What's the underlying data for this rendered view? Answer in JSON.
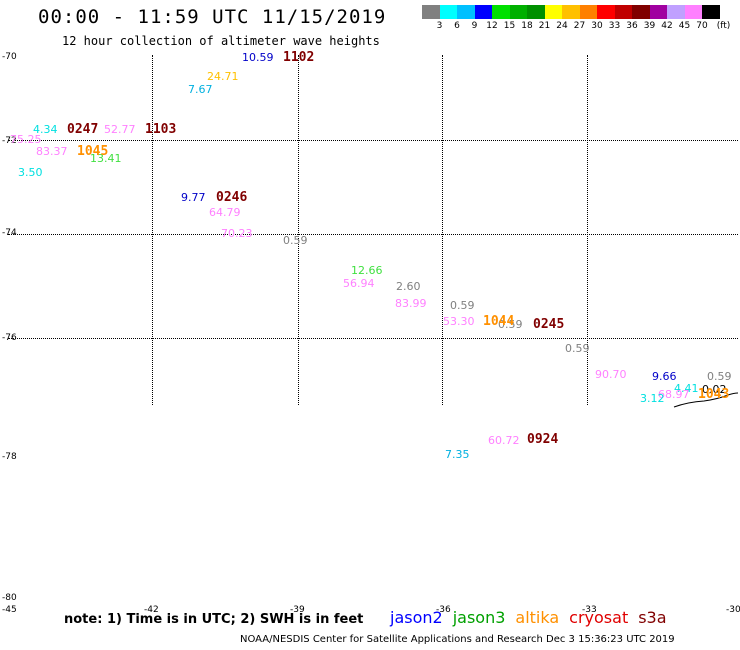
{
  "title": "00:00 - 11:59 UTC 11/15/2019",
  "subtitle": "12 hour collection of altimeter wave heights",
  "colorbar": {
    "colors": [
      "#808080",
      "#00ffff",
      "#00c0ff",
      "#0000ff",
      "#00e000",
      "#00b000",
      "#009000",
      "#ffff00",
      "#ffc000",
      "#ff8000",
      "#ff0000",
      "#c00000",
      "#800000",
      "#a000a0",
      "#c0a0ff",
      "#ff80ff",
      "#000000"
    ],
    "labels": [
      "3",
      "6",
      "9",
      "12",
      "15",
      "18",
      "21",
      "24",
      "27",
      "30",
      "33",
      "36",
      "39",
      "42",
      "45",
      "70",
      "(ft)"
    ]
  },
  "lat_labels": [
    "-70",
    "-72",
    "-74",
    "-76",
    "-78",
    "-80"
  ],
  "lon_labels": [
    "-45",
    "-42",
    "-39",
    "-36",
    "-33",
    "-30"
  ],
  "observations": [
    {
      "text": "10.59",
      "color": "#0000c8"
    },
    {
      "text": "24.71",
      "color": "#ffc000"
    },
    {
      "text": "7.67",
      "color": "#00b0e0"
    },
    {
      "text": "4.34",
      "color": "#00e0e0"
    },
    {
      "text": "52.77",
      "color": "#ff80ff"
    },
    {
      "text": "75.25",
      "color": "#ff80ff"
    },
    {
      "text": "83.37",
      "color": "#ff80ff"
    },
    {
      "text": "13.41",
      "color": "#40e040"
    },
    {
      "text": "3.50",
      "color": "#00e0e0"
    },
    {
      "text": "9.77",
      "color": "#0000c8"
    },
    {
      "text": "64.79",
      "color": "#ff80ff"
    },
    {
      "text": "70.23",
      "color": "#ff80ff"
    },
    {
      "text": "0.59",
      "color": "#808080"
    },
    {
      "text": "12.66",
      "color": "#40e040"
    },
    {
      "text": "56.94",
      "color": "#ff80ff"
    },
    {
      "text": "2.60",
      "color": "#808080"
    },
    {
      "text": "83.99",
      "color": "#ff80ff"
    },
    {
      "text": "0.59",
      "color": "#808080"
    },
    {
      "text": "53.30",
      "color": "#ff80ff"
    },
    {
      "text": "0.59",
      "color": "#808080"
    },
    {
      "text": "0.59",
      "color": "#808080"
    },
    {
      "text": "90.70",
      "color": "#ff80ff"
    },
    {
      "text": "9.66",
      "color": "#0000c8"
    },
    {
      "text": "0.59",
      "color": "#808080"
    },
    {
      "text": "4.41",
      "color": "#00e0e0"
    },
    {
      "text": "68.97",
      "color": "#ff80ff"
    },
    {
      "text": "0.02",
      "color": "#000000"
    },
    {
      "text": "3.12",
      "color": "#00e0e0"
    },
    {
      "text": "60.72",
      "color": "#ff80ff"
    },
    {
      "text": "7.35",
      "color": "#00b0e0"
    }
  ],
  "pass_times": [
    {
      "text": "1102",
      "color": "#800000"
    },
    {
      "text": "0247",
      "color": "#800000"
    },
    {
      "text": "1103",
      "color": "#800000"
    },
    {
      "text": "1045",
      "color": "#ff9000"
    },
    {
      "text": "0246",
      "color": "#800000"
    },
    {
      "text": "1044",
      "color": "#ff9000"
    },
    {
      "text": "0245",
      "color": "#800000"
    },
    {
      "text": "1043",
      "color": "#ff9000"
    },
    {
      "text": "0924",
      "color": "#800000"
    }
  ],
  "note": "note: 1) Time is in UTC; 2) SWH is in feet",
  "satellites": [
    {
      "name": "jason2",
      "color": "#0000ff"
    },
    {
      "name": "jason3",
      "color": "#00a000"
    },
    {
      "name": "altika",
      "color": "#ff9000"
    },
    {
      "name": "cryosat",
      "color": "#e00000"
    },
    {
      "name": "s3a",
      "color": "#800000"
    }
  ],
  "footer": "NOAA/NESDIS Center for Satellite Applications and Research    Dec  3 15:36:23 UTC 2019"
}
